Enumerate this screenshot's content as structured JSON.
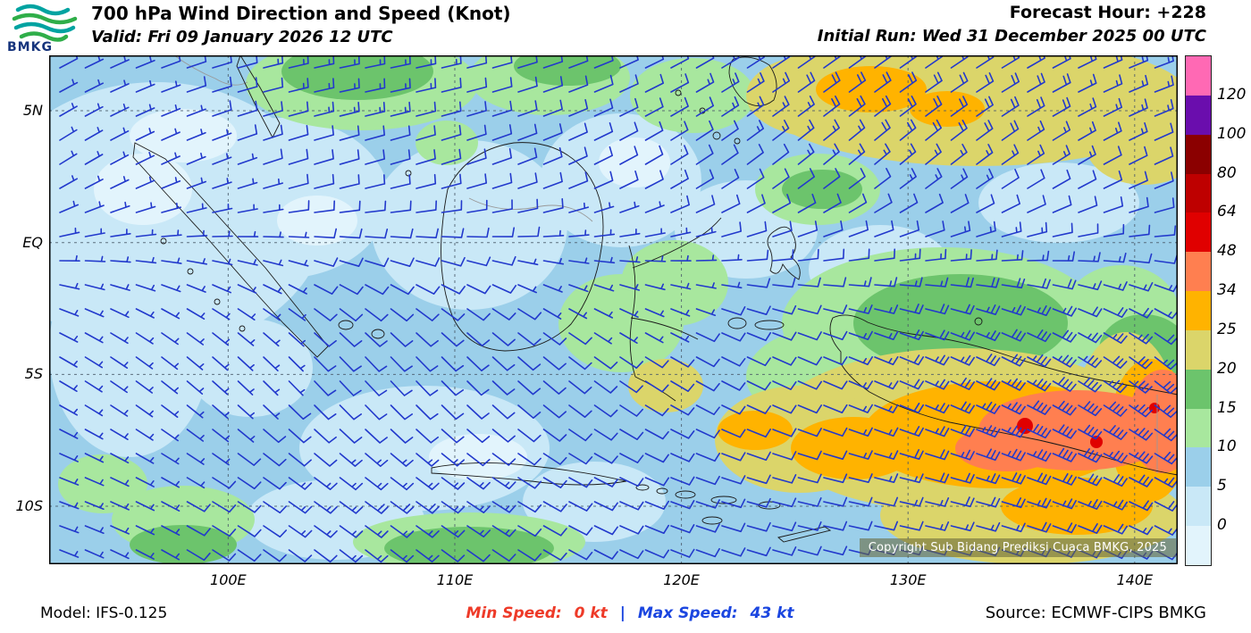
{
  "header": {
    "logo_text": "BMKG",
    "title": "700 hPa Wind Direction and Speed (Knot)",
    "valid_line": "Valid: Fri 09 January 2026 12 UTC",
    "forecast_hour": "Forecast Hour: +228",
    "initial_run": "Initial Run: Wed 31 December 2025 00 UTC"
  },
  "map": {
    "extent": {
      "lon_min": 92.1,
      "lon_max": 141.9,
      "lat_min": -12.2,
      "lat_max": 7.1
    },
    "lat_lines": [
      {
        "value": 5,
        "label": "5N"
      },
      {
        "value": 0,
        "label": "EQ"
      },
      {
        "value": -5,
        "label": "5S"
      },
      {
        "value": -10,
        "label": "10S"
      }
    ],
    "lon_lines": [
      {
        "value": 100,
        "label": "100E"
      },
      {
        "value": 110,
        "label": "110E"
      },
      {
        "value": 120,
        "label": "120E"
      },
      {
        "value": 130,
        "label": "130E"
      },
      {
        "value": 140,
        "label": "140E"
      }
    ],
    "copyright": "Copyright Sub Bidang Prediksi Cuaca BMKG, 2025",
    "stats": {
      "min_speed_kt": 0,
      "max_speed_kt": 43,
      "level": "700 hPa",
      "unit": "Knot"
    }
  },
  "legend": {
    "tick_labels": [
      "120",
      "100",
      "80",
      "64",
      "48",
      "34",
      "25",
      "20",
      "15",
      "10",
      "5",
      "0"
    ],
    "swatch_colors_top_to_bottom": [
      "#FF69B4",
      "#6A0DAD",
      "#8B0000",
      "#BE0000",
      "#E00000",
      "#FF7F50",
      "#FFB300",
      "#DBD56A",
      "#6CC46C",
      "#A8E79E",
      "#9BCFEA",
      "#C9E8F7",
      "#E2F4FC"
    ]
  },
  "footer": {
    "model": "Model: IFS-0.125",
    "min_speed_label": "Min Speed:",
    "min_speed_value": "0 kt",
    "separator": "|",
    "max_speed_label": "Max Speed:",
    "max_speed_value": "43 kt",
    "source": "Source: ECMWF-CIPS BMKG"
  },
  "colors": {
    "min_speed_red": "#ee3a28",
    "max_speed_blue": "#1b46e0",
    "barb_blue": "#2239cc",
    "gridline": "#4a5a6a",
    "coastline": "#1a1a1a",
    "border_gray": "#999999",
    "logo_teal": "#00a3a1",
    "logo_green": "#2fae49",
    "logo_navy": "#16347c"
  }
}
